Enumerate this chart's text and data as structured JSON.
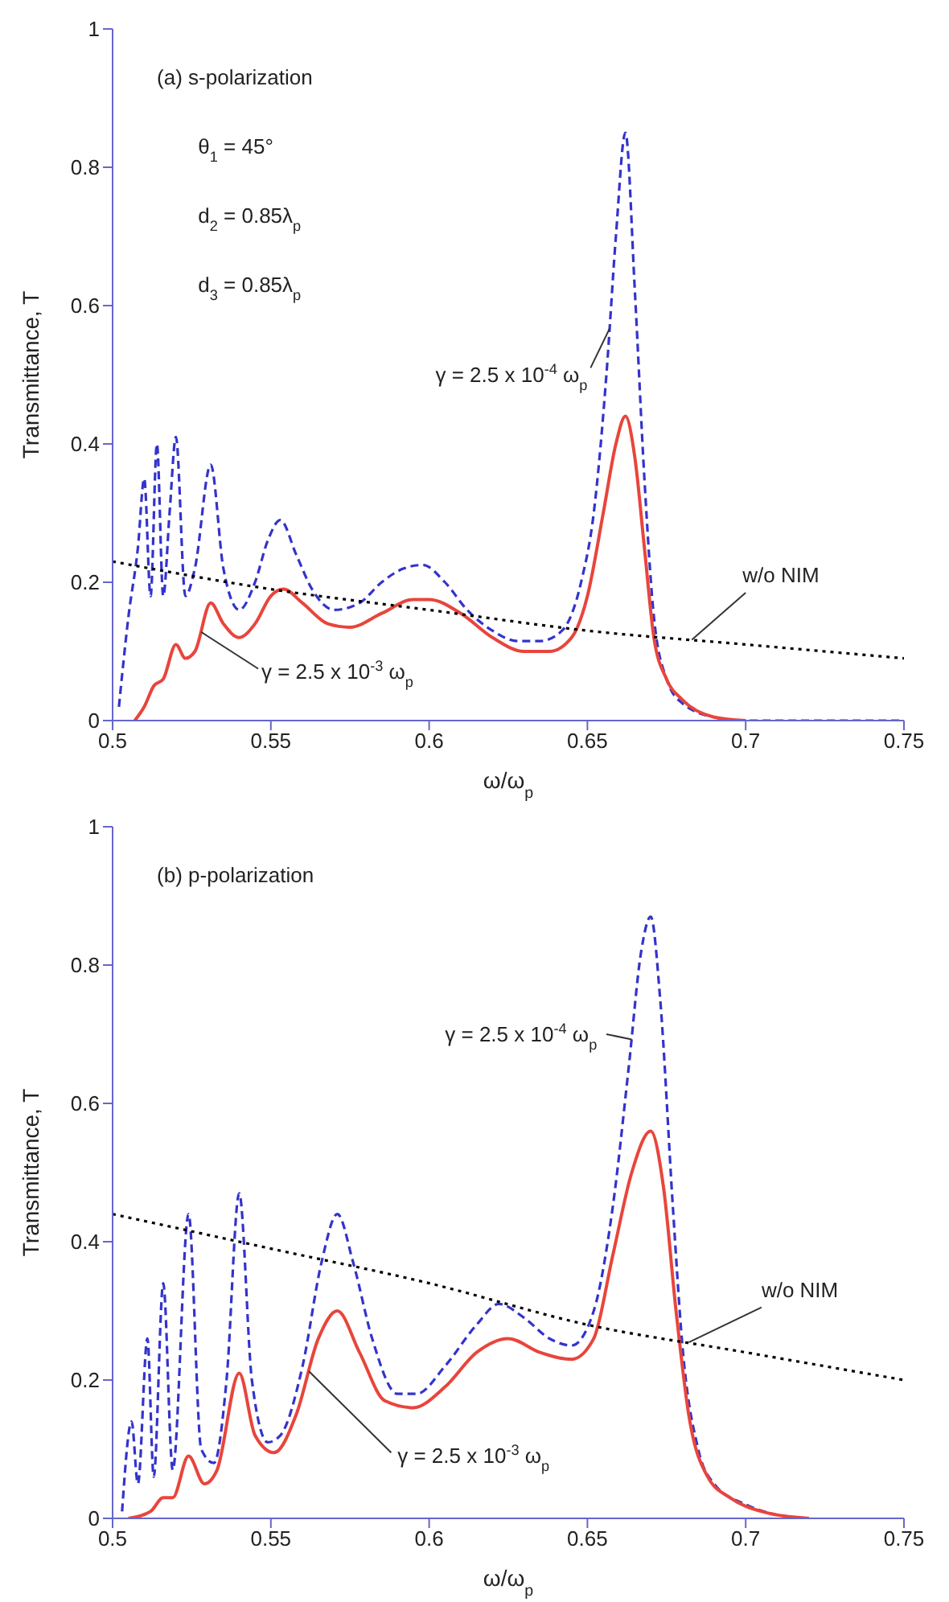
{
  "chart_data": [
    {
      "type": "line",
      "xlabel": "ω/ω$_{p}$",
      "ylabel": "Transmittance, T",
      "xlim": [
        0.5,
        0.75
      ],
      "xticks": [
        0.5,
        0.55,
        0.6,
        0.65,
        0.7,
        0.75
      ],
      "ylim": [
        0,
        1
      ],
      "yticks": [
        0,
        0.2,
        0.4,
        0.6,
        0.8,
        1
      ],
      "annotations": [
        "(a) s-polarization",
        "θ$_{1}$ = 45°",
        "d$_{2}$ = 0.85λ$_{p}$",
        "d$_{3}$ = 0.85λ$_{p}$"
      ],
      "series": [
        {
          "name": "γ = 2.5 x 10$^{-4}$ ω$_{p}$",
          "color": "#3333cc",
          "line_style": "dashed",
          "x": [
            0.502,
            0.505,
            0.508,
            0.51,
            0.512,
            0.514,
            0.516,
            0.518,
            0.52,
            0.523,
            0.526,
            0.531,
            0.535,
            0.54,
            0.545,
            0.549,
            0.553,
            0.558,
            0.563,
            0.57,
            0.578,
            0.585,
            0.592,
            0.598,
            0.605,
            0.612,
            0.62,
            0.628,
            0.635,
            0.642,
            0.648,
            0.652,
            0.656,
            0.659,
            0.662,
            0.665,
            0.668,
            0.671,
            0.675,
            0.68,
            0.69,
            0.7,
            0.75
          ],
          "values": [
            0.02,
            0.15,
            0.25,
            0.35,
            0.18,
            0.4,
            0.18,
            0.3,
            0.41,
            0.18,
            0.22,
            0.37,
            0.22,
            0.16,
            0.2,
            0.26,
            0.29,
            0.24,
            0.19,
            0.16,
            0.17,
            0.2,
            0.22,
            0.225,
            0.2,
            0.16,
            0.13,
            0.115,
            0.115,
            0.13,
            0.2,
            0.3,
            0.5,
            0.7,
            0.85,
            0.62,
            0.35,
            0.15,
            0.06,
            0.025,
            0.005,
            0,
            0
          ]
        },
        {
          "name": "γ = 2.5 x 10$^{-3}$ ω$_{p}$",
          "color": "#e8453c",
          "line_style": "solid",
          "x": [
            0.507,
            0.51,
            0.513,
            0.516,
            0.52,
            0.523,
            0.526,
            0.531,
            0.535,
            0.54,
            0.545,
            0.55,
            0.554,
            0.56,
            0.568,
            0.575,
            0.585,
            0.595,
            0.6,
            0.61,
            0.62,
            0.63,
            0.638,
            0.645,
            0.65,
            0.655,
            0.659,
            0.662,
            0.665,
            0.668,
            0.671,
            0.675,
            0.68,
            0.69,
            0.7
          ],
          "values": [
            0,
            0.02,
            0.05,
            0.06,
            0.11,
            0.09,
            0.1,
            0.17,
            0.14,
            0.12,
            0.14,
            0.18,
            0.19,
            0.17,
            0.14,
            0.135,
            0.155,
            0.175,
            0.175,
            0.155,
            0.12,
            0.1,
            0.1,
            0.12,
            0.18,
            0.3,
            0.4,
            0.44,
            0.38,
            0.25,
            0.12,
            0.06,
            0.03,
            0.005,
            0
          ]
        },
        {
          "name": "w/o NIM",
          "color": "#000000",
          "line_style": "dotted",
          "x": [
            0.5,
            0.55,
            0.6,
            0.65,
            0.7,
            0.75
          ],
          "values": [
            0.23,
            0.19,
            0.16,
            0.13,
            0.11,
            0.09
          ]
        }
      ]
    },
    {
      "type": "line",
      "xlabel": "ω/ω$_{p}$",
      "ylabel": "Transmittance, T",
      "xlim": [
        0.5,
        0.75
      ],
      "xticks": [
        0.5,
        0.55,
        0.6,
        0.65,
        0.7,
        0.75
      ],
      "ylim": [
        0,
        1
      ],
      "yticks": [
        0,
        0.2,
        0.4,
        0.6,
        0.8,
        1
      ],
      "annotations": [
        "(b) p-polarization"
      ],
      "series": [
        {
          "name": "γ = 2.5 x 10$^{-4}$ ω$_{p}$",
          "color": "#3333cc",
          "line_style": "dashed",
          "x": [
            0.503,
            0.506,
            0.508,
            0.511,
            0.513,
            0.516,
            0.519,
            0.524,
            0.528,
            0.532,
            0.536,
            0.54,
            0.544,
            0.549,
            0.553,
            0.56,
            0.566,
            0.571,
            0.576,
            0.582,
            0.59,
            0.596,
            0.605,
            0.615,
            0.622,
            0.63,
            0.638,
            0.645,
            0.652,
            0.658,
            0.663,
            0.667,
            0.67,
            0.673,
            0.677,
            0.68,
            0.685,
            0.69,
            0.7,
            0.71,
            0.72
          ],
          "values": [
            0.01,
            0.14,
            0.05,
            0.26,
            0.06,
            0.34,
            0.07,
            0.44,
            0.1,
            0.08,
            0.2,
            0.47,
            0.2,
            0.11,
            0.12,
            0.22,
            0.37,
            0.44,
            0.37,
            0.26,
            0.18,
            0.18,
            0.22,
            0.28,
            0.31,
            0.29,
            0.26,
            0.25,
            0.3,
            0.45,
            0.65,
            0.82,
            0.87,
            0.75,
            0.45,
            0.25,
            0.1,
            0.05,
            0.02,
            0.005,
            0
          ]
        },
        {
          "name": "γ = 2.5 x 10$^{-3}$ ω$_{p}$",
          "color": "#e8453c",
          "line_style": "solid",
          "x": [
            0.505,
            0.512,
            0.516,
            0.519,
            0.524,
            0.529,
            0.533,
            0.54,
            0.545,
            0.551,
            0.558,
            0.565,
            0.571,
            0.578,
            0.586,
            0.595,
            0.605,
            0.615,
            0.625,
            0.635,
            0.645,
            0.652,
            0.658,
            0.664,
            0.67,
            0.674,
            0.678,
            0.682,
            0.688,
            0.695,
            0.705,
            0.72
          ],
          "values": [
            0,
            0.01,
            0.03,
            0.03,
            0.09,
            0.05,
            0.07,
            0.21,
            0.12,
            0.095,
            0.15,
            0.26,
            0.3,
            0.24,
            0.17,
            0.16,
            0.19,
            0.24,
            0.26,
            0.24,
            0.23,
            0.26,
            0.38,
            0.5,
            0.56,
            0.48,
            0.3,
            0.15,
            0.06,
            0.03,
            0.01,
            0
          ]
        },
        {
          "name": "w/o NIM",
          "color": "#000000",
          "line_style": "dotted",
          "x": [
            0.5,
            0.55,
            0.6,
            0.65,
            0.7,
            0.75
          ],
          "values": [
            0.44,
            0.39,
            0.34,
            0.28,
            0.24,
            0.2
          ]
        }
      ]
    }
  ]
}
